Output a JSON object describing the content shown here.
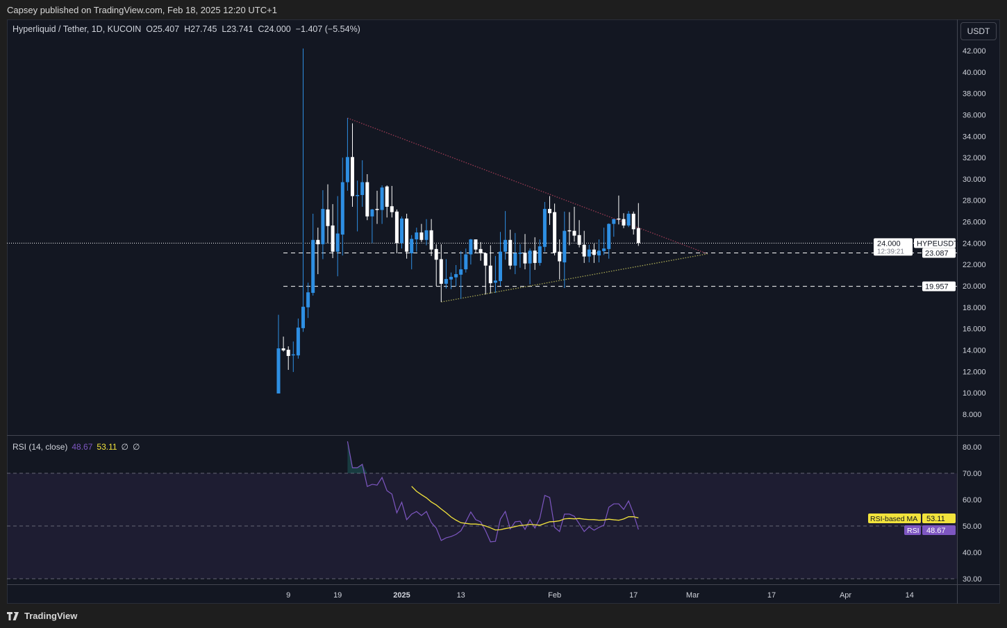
{
  "header": {
    "published": "Capsey published on TradingView.com, Feb 18, 2025 12:20 UTC+1"
  },
  "legend": {
    "symbol": "Hyperliquid / Tether, 1D, KUCOIN",
    "open": "O25.407",
    "high": "H27.745",
    "low": "L23.741",
    "close": "C24.000",
    "change": "−1.407 (−5.54%)"
  },
  "currency_button": "USDT",
  "rsi_legend": {
    "name": "RSI (14, close)",
    "rsi": "48.67",
    "ma": "53.11",
    "extra1": "∅",
    "extra2": "∅"
  },
  "footer": {
    "logo": "TradingView",
    "logo_icon": "tradingview-logo-icon"
  },
  "colors": {
    "up": "#2e8fe3",
    "down": "#ffffff",
    "rsi": "#7e57c2",
    "rsi_ma": "#f2e33c",
    "resistance": "#9c3b53",
    "support": "#a8a854",
    "background": "#131722"
  },
  "price_labels": {
    "symbol_tag": "HYPEUSDT",
    "last": "24.000",
    "countdown": "12:39:21",
    "level1": "23.087",
    "level2": "19.957",
    "rsi_ma_tag": "RSI-based MA",
    "rsi_ma_value": "53.11",
    "rsi_tag": "RSI",
    "rsi_value": "48.67"
  },
  "chart_data": [
    {
      "type": "candlestick",
      "title": "Hyperliquid / Tether, 1D, KUCOIN",
      "ylim": [
        7,
        43
      ],
      "y_ticks": [
        "42.000",
        "40.000",
        "38.000",
        "36.000",
        "34.000",
        "32.000",
        "30.000",
        "28.000",
        "26.000",
        "24.000",
        "22.000",
        "20.000",
        "18.000",
        "16.000",
        "14.000",
        "12.000",
        "10.000",
        "8.000"
      ],
      "x_ticks": [
        {
          "date": "2024-12-09",
          "label": "9"
        },
        {
          "date": "2024-12-19",
          "label": "19"
        },
        {
          "date": "2025-01-01",
          "label": "2025"
        },
        {
          "date": "2025-01-13",
          "label": "13"
        },
        {
          "date": "2025-02-01",
          "label": "Feb"
        },
        {
          "date": "2025-02-17",
          "label": "17"
        },
        {
          "date": "2025-03-01",
          "label": "Mar"
        },
        {
          "date": "2025-03-17",
          "label": "17"
        },
        {
          "date": "2025-04-01",
          "label": "Apr"
        },
        {
          "date": "2025-04-14",
          "label": "14"
        }
      ],
      "x_end_date": "2025-04-25",
      "columns": [
        "date",
        "open",
        "high",
        "low",
        "close"
      ],
      "candles": [
        [
          "2024-12-07",
          9.94,
          17.3,
          9.94,
          14.16
        ],
        [
          "2024-12-08",
          14.16,
          15.26,
          13.86,
          13.97
        ],
        [
          "2024-12-09",
          14.03,
          14.35,
          12.15,
          13.45
        ],
        [
          "2024-12-10",
          13.5,
          14.8,
          11.95,
          13.6
        ],
        [
          "2024-12-11",
          13.5,
          16.95,
          13.2,
          16.1
        ],
        [
          "2024-12-12",
          16.05,
          42.2,
          15.7,
          18.05
        ],
        [
          "2024-12-13",
          18.0,
          20.3,
          17.0,
          19.4
        ],
        [
          "2024-12-14",
          19.35,
          26.75,
          19.1,
          24.3
        ],
        [
          "2024-12-15",
          24.3,
          25.45,
          21.1,
          23.9
        ],
        [
          "2024-12-16",
          23.9,
          28.95,
          22.5,
          27.2
        ],
        [
          "2024-12-17",
          27.15,
          29.5,
          24.0,
          25.6
        ],
        [
          "2024-12-18",
          25.65,
          27.65,
          22.6,
          23.2
        ],
        [
          "2024-12-19",
          23.2,
          28.4,
          20.9,
          24.9
        ],
        [
          "2024-12-20",
          24.8,
          32.0,
          22.85,
          29.7
        ],
        [
          "2024-12-21",
          29.7,
          35.7,
          28.9,
          32.05
        ],
        [
          "2024-12-22",
          32.05,
          35.2,
          27.4,
          28.4
        ],
        [
          "2024-12-23",
          28.4,
          29.85,
          25.1,
          28.5
        ],
        [
          "2024-12-24",
          28.5,
          31.75,
          27.4,
          29.7
        ],
        [
          "2024-12-25",
          29.7,
          30.45,
          26.15,
          26.5
        ],
        [
          "2024-12-26",
          26.5,
          27.2,
          24.0,
          27.15
        ],
        [
          "2024-12-27",
          27.2,
          28.9,
          25.8,
          27.1
        ],
        [
          "2024-12-28",
          27.1,
          29.4,
          25.8,
          29.2
        ],
        [
          "2024-12-29",
          29.3,
          29.4,
          26.4,
          27.4
        ],
        [
          "2024-12-30",
          27.45,
          29.35,
          26.4,
          26.9
        ],
        [
          "2024-12-31",
          26.95,
          27.15,
          23.05,
          24.0
        ],
        [
          "2025-01-01",
          24.0,
          26.5,
          23.5,
          26.3
        ],
        [
          "2025-01-02",
          26.3,
          26.75,
          22.55,
          23.2
        ],
        [
          "2025-01-03",
          23.05,
          24.75,
          21.55,
          24.4
        ],
        [
          "2025-01-04",
          24.35,
          25.45,
          23.2,
          25.0
        ],
        [
          "2025-01-05",
          25.0,
          25.8,
          24.1,
          24.3
        ],
        [
          "2025-01-06",
          24.3,
          26.25,
          23.8,
          25.2
        ],
        [
          "2025-01-07",
          25.2,
          26.25,
          22.8,
          23.4
        ],
        [
          "2025-01-08",
          23.45,
          23.9,
          20.0,
          22.45
        ],
        [
          "2025-01-09",
          22.5,
          23.9,
          18.5,
          20.2
        ],
        [
          "2025-01-10",
          20.2,
          22.5,
          19.75,
          20.65
        ],
        [
          "2025-01-11",
          20.6,
          21.25,
          19.7,
          20.85
        ],
        [
          "2025-01-12",
          20.8,
          21.95,
          19.95,
          21.1
        ],
        [
          "2025-01-13",
          21.05,
          23.25,
          18.8,
          21.55
        ],
        [
          "2025-01-14",
          21.55,
          23.5,
          21.25,
          22.95
        ],
        [
          "2025-01-15",
          22.95,
          24.4,
          22.0,
          24.35
        ],
        [
          "2025-01-16",
          24.35,
          24.35,
          23.05,
          23.4
        ],
        [
          "2025-01-17",
          23.45,
          24.1,
          22.35,
          23.05
        ],
        [
          "2025-01-18",
          23.05,
          23.05,
          19.2,
          21.9
        ],
        [
          "2025-01-19",
          21.9,
          23.8,
          19.3,
          20.25
        ],
        [
          "2025-01-20",
          20.3,
          22.8,
          19.35,
          20.5
        ],
        [
          "2025-01-21",
          20.45,
          25.05,
          20.0,
          23.2
        ],
        [
          "2025-01-22",
          23.2,
          27.0,
          22.45,
          24.3
        ],
        [
          "2025-01-23",
          24.3,
          25.25,
          21.55,
          21.9
        ],
        [
          "2025-01-24",
          21.9,
          24.95,
          21.1,
          23.05
        ],
        [
          "2025-01-25",
          23.05,
          23.9,
          21.7,
          23.1
        ],
        [
          "2025-01-26",
          23.1,
          24.85,
          21.55,
          22.1
        ],
        [
          "2025-01-27",
          22.1,
          23.5,
          20.15,
          23.3
        ],
        [
          "2025-01-28",
          23.3,
          24.55,
          21.5,
          22.15
        ],
        [
          "2025-01-29",
          22.15,
          24.35,
          21.9,
          23.7
        ],
        [
          "2025-01-30",
          23.65,
          27.85,
          23.2,
          27.2
        ],
        [
          "2025-01-31",
          27.2,
          28.4,
          25.7,
          26.8
        ],
        [
          "2025-02-01",
          26.9,
          27.7,
          22.85,
          23.1
        ],
        [
          "2025-02-02",
          23.2,
          24.35,
          20.6,
          22.3
        ],
        [
          "2025-02-03",
          22.2,
          26.95,
          19.8,
          25.15
        ],
        [
          "2025-02-04",
          25.2,
          26.9,
          23.8,
          25.15
        ],
        [
          "2025-02-05",
          25.15,
          27.4,
          24.15,
          24.7
        ],
        [
          "2025-02-06",
          24.75,
          26.15,
          23.6,
          23.85
        ],
        [
          "2025-02-07",
          23.85,
          25.15,
          22.15,
          22.75
        ],
        [
          "2025-02-08",
          22.75,
          23.85,
          22.2,
          23.4
        ],
        [
          "2025-02-09",
          23.4,
          23.95,
          22.15,
          22.9
        ],
        [
          "2025-02-10",
          22.85,
          24.35,
          22.2,
          23.3
        ],
        [
          "2025-02-11",
          23.25,
          25.45,
          22.9,
          23.5
        ],
        [
          "2025-02-12",
          23.45,
          25.85,
          22.55,
          25.8
        ],
        [
          "2025-02-13",
          25.8,
          26.25,
          24.6,
          26.25
        ],
        [
          "2025-02-14",
          26.3,
          28.45,
          25.75,
          26.25
        ],
        [
          "2025-02-15",
          26.25,
          26.8,
          25.4,
          25.65
        ],
        [
          "2025-02-16",
          25.65,
          27.0,
          25.5,
          26.75
        ],
        [
          "2025-02-17",
          26.75,
          26.95,
          24.8,
          25.3
        ],
        [
          "2025-02-18",
          25.407,
          27.745,
          23.741,
          24.0
        ]
      ],
      "last_price": 24.0,
      "horizontal_levels": [
        23.087,
        19.957
      ],
      "trendlines": [
        {
          "role": "resistance",
          "from": [
            "2024-12-21",
            35.7
          ],
          "to": [
            "2025-03-04",
            23.0
          ]
        },
        {
          "role": "support",
          "from": [
            "2025-01-09",
            18.5
          ],
          "to": [
            "2025-03-04",
            23.0
          ]
        }
      ]
    },
    {
      "type": "line",
      "title": "RSI (14, close)",
      "ylim": [
        27.5,
        84
      ],
      "y_ticks": [
        "80.00",
        "70.00",
        "60.00",
        "50.00",
        "40.00",
        "30.00"
      ],
      "bands": {
        "upper": 70,
        "middle": 50,
        "lower": 30
      },
      "ma_length": 14,
      "series": [
        {
          "name": "RSI",
          "start_date": "2024-12-21",
          "values": [
            82.1,
            72.1,
            72.1,
            73.4,
            65,
            65.8,
            65.5,
            68.4,
            63.4,
            62.1,
            55,
            59,
            52.4,
            54.5,
            55.5,
            54,
            55.5,
            51.3,
            49.2,
            44.5,
            45.5,
            46,
            46.8,
            48.2,
            51.6,
            55.3,
            52.4,
            51.6,
            48.2,
            44,
            44.2,
            52.6,
            55.5,
            48.9,
            51.6,
            51.8,
            48.7,
            52.4,
            49.2,
            52.9,
            61.6,
            60.8,
            49.5,
            47.9,
            54.5,
            54.5,
            53.7,
            50.8,
            47.9,
            49.7,
            48.4,
            49.5,
            50.3,
            57.1,
            58.4,
            58.4,
            56.3,
            59.5,
            54.7,
            48.67
          ]
        },
        {
          "name": "RSI-based MA",
          "last": 53.11
        }
      ]
    }
  ]
}
